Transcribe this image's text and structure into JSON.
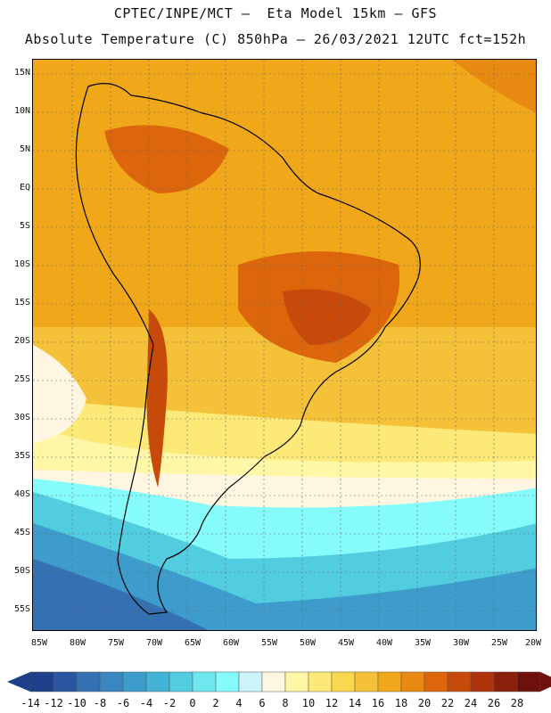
{
  "title_line1": "CPTEC/INPE/MCT –  Eta Model 15km – GFS",
  "title_line2": "Absolute Temperature (C) 850hPa – 26/03/2021 12UTC fct=152h",
  "lat_labels": [
    "15N",
    "10N",
    "5N",
    "EQ",
    "5S",
    "10S",
    "15S",
    "20S",
    "25S",
    "30S",
    "35S",
    "40S",
    "45S",
    "50S",
    "55S"
  ],
  "lon_labels": [
    "85W",
    "80W",
    "75W",
    "70W",
    "65W",
    "60W",
    "55W",
    "50W",
    "45W",
    "40W",
    "35W",
    "30W",
    "25W",
    "20W"
  ],
  "colorbar": {
    "labels": [
      "-14",
      "-12",
      "-10",
      "-8",
      "-6",
      "-4",
      "-2",
      "0",
      "2",
      "4",
      "6",
      "8",
      "10",
      "12",
      "14",
      "16",
      "18",
      "20",
      "22",
      "24",
      "26",
      "28"
    ],
    "colors": [
      "#1e3f8a",
      "#2a56a0",
      "#3570b2",
      "#3a86c0",
      "#3d9ccb",
      "#44b4d6",
      "#52cde0",
      "#6ee7ee",
      "#86fbfb",
      "#cdf3fb",
      "#fff6e1",
      "#fff7a6",
      "#fde977",
      "#f9d84f",
      "#f4c139",
      "#f0a81a",
      "#e88a12",
      "#dd650c",
      "#c84a0b",
      "#ae330b",
      "#8a1f0c",
      "#6e100c"
    ]
  }
}
